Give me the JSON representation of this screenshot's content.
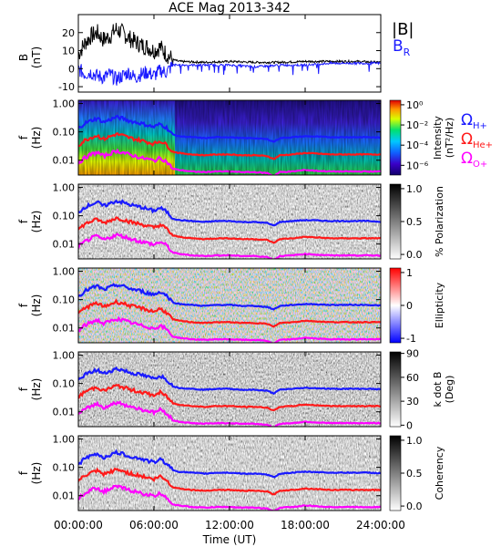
{
  "title": "ACE Mag 2013-342",
  "colors": {
    "black": "#000000",
    "blue": "#1a1aff",
    "red": "#ff1a1a",
    "magenta": "#ff00ff"
  },
  "chart_data": [
    {
      "type": "line",
      "panel": "B",
      "ylabel_line1": "B",
      "ylabel_line2": "(nT)",
      "y_ticks": [
        "20",
        "10",
        "0",
        "-10"
      ],
      "ylim": [
        -13,
        30
      ],
      "xlim_hours": [
        0,
        24
      ],
      "legend": [
        "|B|",
        "B_R"
      ],
      "series": [
        {
          "name": "|B|",
          "color": "black",
          "x": [
            0,
            0.5,
            1,
            1.5,
            2,
            2.5,
            3,
            3.5,
            4,
            4.5,
            5,
            5.5,
            6,
            6.5,
            7,
            7.5,
            8,
            10,
            12,
            14,
            16,
            18,
            20,
            22,
            24
          ],
          "values": [
            8,
            14,
            18,
            20,
            16,
            18,
            22,
            20,
            17,
            15,
            13,
            12,
            10,
            12,
            8,
            5,
            4,
            3.5,
            4,
            3.5,
            3.5,
            4,
            4,
            4,
            3.5
          ]
        },
        {
          "name": "B_R",
          "color": "blue",
          "x": [
            0,
            0.5,
            1,
            1.5,
            2,
            2.5,
            3,
            3.5,
            4,
            4.5,
            5,
            5.5,
            6,
            6.5,
            7,
            7.5,
            8,
            10,
            12,
            14,
            16,
            18,
            20,
            22,
            24
          ],
          "values": [
            0,
            -3,
            -2,
            -4,
            -5,
            -3,
            -6,
            -4,
            -2,
            -5,
            -3,
            -2,
            -4,
            -1,
            -2,
            2,
            2,
            2,
            2,
            1,
            2,
            2,
            3,
            3,
            3
          ]
        }
      ]
    },
    {
      "type": "heatmap",
      "panel": "Intensity",
      "ylabel_line1": "f",
      "ylabel_line2": "(Hz)",
      "y_ticks": [
        "1.00",
        "0.10",
        "0.01"
      ],
      "colorbar_ticks": [
        "10⁰",
        "10⁻²",
        "10⁻⁴",
        "10⁻⁶"
      ],
      "colorbar_label": "Intensity",
      "colorbar_label2": "(nT²/Hz)",
      "legend": [
        "ΩH+",
        "ΩHe+",
        "ΩO+"
      ]
    },
    {
      "type": "heatmap",
      "panel": "Polarization",
      "ylabel_line1": "f",
      "ylabel_line2": "(Hz)",
      "y_ticks": [
        "1.00",
        "0.10",
        "0.01"
      ],
      "colorbar_ticks": [
        "1.0",
        "0.5",
        "0.0"
      ],
      "colorbar_label": "% Polarization"
    },
    {
      "type": "heatmap",
      "panel": "Ellipticity",
      "ylabel_line1": "f",
      "ylabel_line2": "(Hz)",
      "y_ticks": [
        "1.00",
        "0.10",
        "0.01"
      ],
      "colorbar_ticks": [
        "1",
        "0",
        "-1"
      ],
      "colorbar_label": "Ellipticity"
    },
    {
      "type": "heatmap",
      "panel": "kdotB",
      "ylabel_line1": "f",
      "ylabel_line2": "(Hz)",
      "y_ticks": [
        "1.00",
        "0.10",
        "0.01"
      ],
      "colorbar_ticks": [
        "90",
        "60",
        "30",
        "0"
      ],
      "colorbar_label": "k dot B",
      "colorbar_label2": "(Deg)"
    },
    {
      "type": "heatmap",
      "panel": "Coherency",
      "ylabel_line1": "f",
      "ylabel_line2": "(Hz)",
      "y_ticks": [
        "1.00",
        "0.10",
        "0.01"
      ],
      "colorbar_ticks": [
        "1.0",
        "0.5",
        "0.0"
      ],
      "colorbar_label": "Coherency"
    }
  ],
  "gyro_lines": {
    "x_hours": [
      0,
      0.5,
      1,
      1.5,
      2,
      2.5,
      3,
      3.5,
      4,
      4.5,
      5,
      5.5,
      6,
      6.5,
      7,
      7.5,
      8,
      9,
      10,
      11,
      12,
      13,
      14,
      15,
      15.5,
      16,
      17,
      18,
      19,
      20,
      21,
      22,
      23,
      24
    ],
    "h_plus_hz": [
      0.13,
      0.2,
      0.25,
      0.3,
      0.22,
      0.27,
      0.33,
      0.3,
      0.25,
      0.22,
      0.2,
      0.17,
      0.15,
      0.19,
      0.14,
      0.08,
      0.07,
      0.065,
      0.06,
      0.065,
      0.065,
      0.06,
      0.06,
      0.055,
      0.045,
      0.06,
      0.065,
      0.07,
      0.068,
      0.065,
      0.065,
      0.065,
      0.065,
      0.062
    ],
    "he_plus_hz": [
      0.033,
      0.05,
      0.063,
      0.075,
      0.055,
      0.068,
      0.083,
      0.075,
      0.063,
      0.055,
      0.05,
      0.043,
      0.038,
      0.048,
      0.035,
      0.02,
      0.018,
      0.016,
      0.015,
      0.016,
      0.016,
      0.015,
      0.015,
      0.014,
      0.011,
      0.015,
      0.016,
      0.018,
      0.017,
      0.016,
      0.016,
      0.016,
      0.016,
      0.016
    ],
    "o_plus_hz": [
      0.008,
      0.012,
      0.016,
      0.019,
      0.014,
      0.017,
      0.021,
      0.019,
      0.016,
      0.014,
      0.012,
      0.011,
      0.0095,
      0.012,
      0.009,
      0.005,
      0.0045,
      0.004,
      0.0038,
      0.004,
      0.004,
      0.0038,
      0.0038,
      0.0035,
      0.0028,
      0.0038,
      0.004,
      0.0045,
      0.0042,
      0.004,
      0.004,
      0.004,
      0.004,
      0.004
    ]
  },
  "x_axis": {
    "ticks": [
      "00:00:00",
      "06:00:00",
      "12:00:00",
      "18:00:00",
      "24:00:00"
    ],
    "label": "Time (UT)"
  }
}
